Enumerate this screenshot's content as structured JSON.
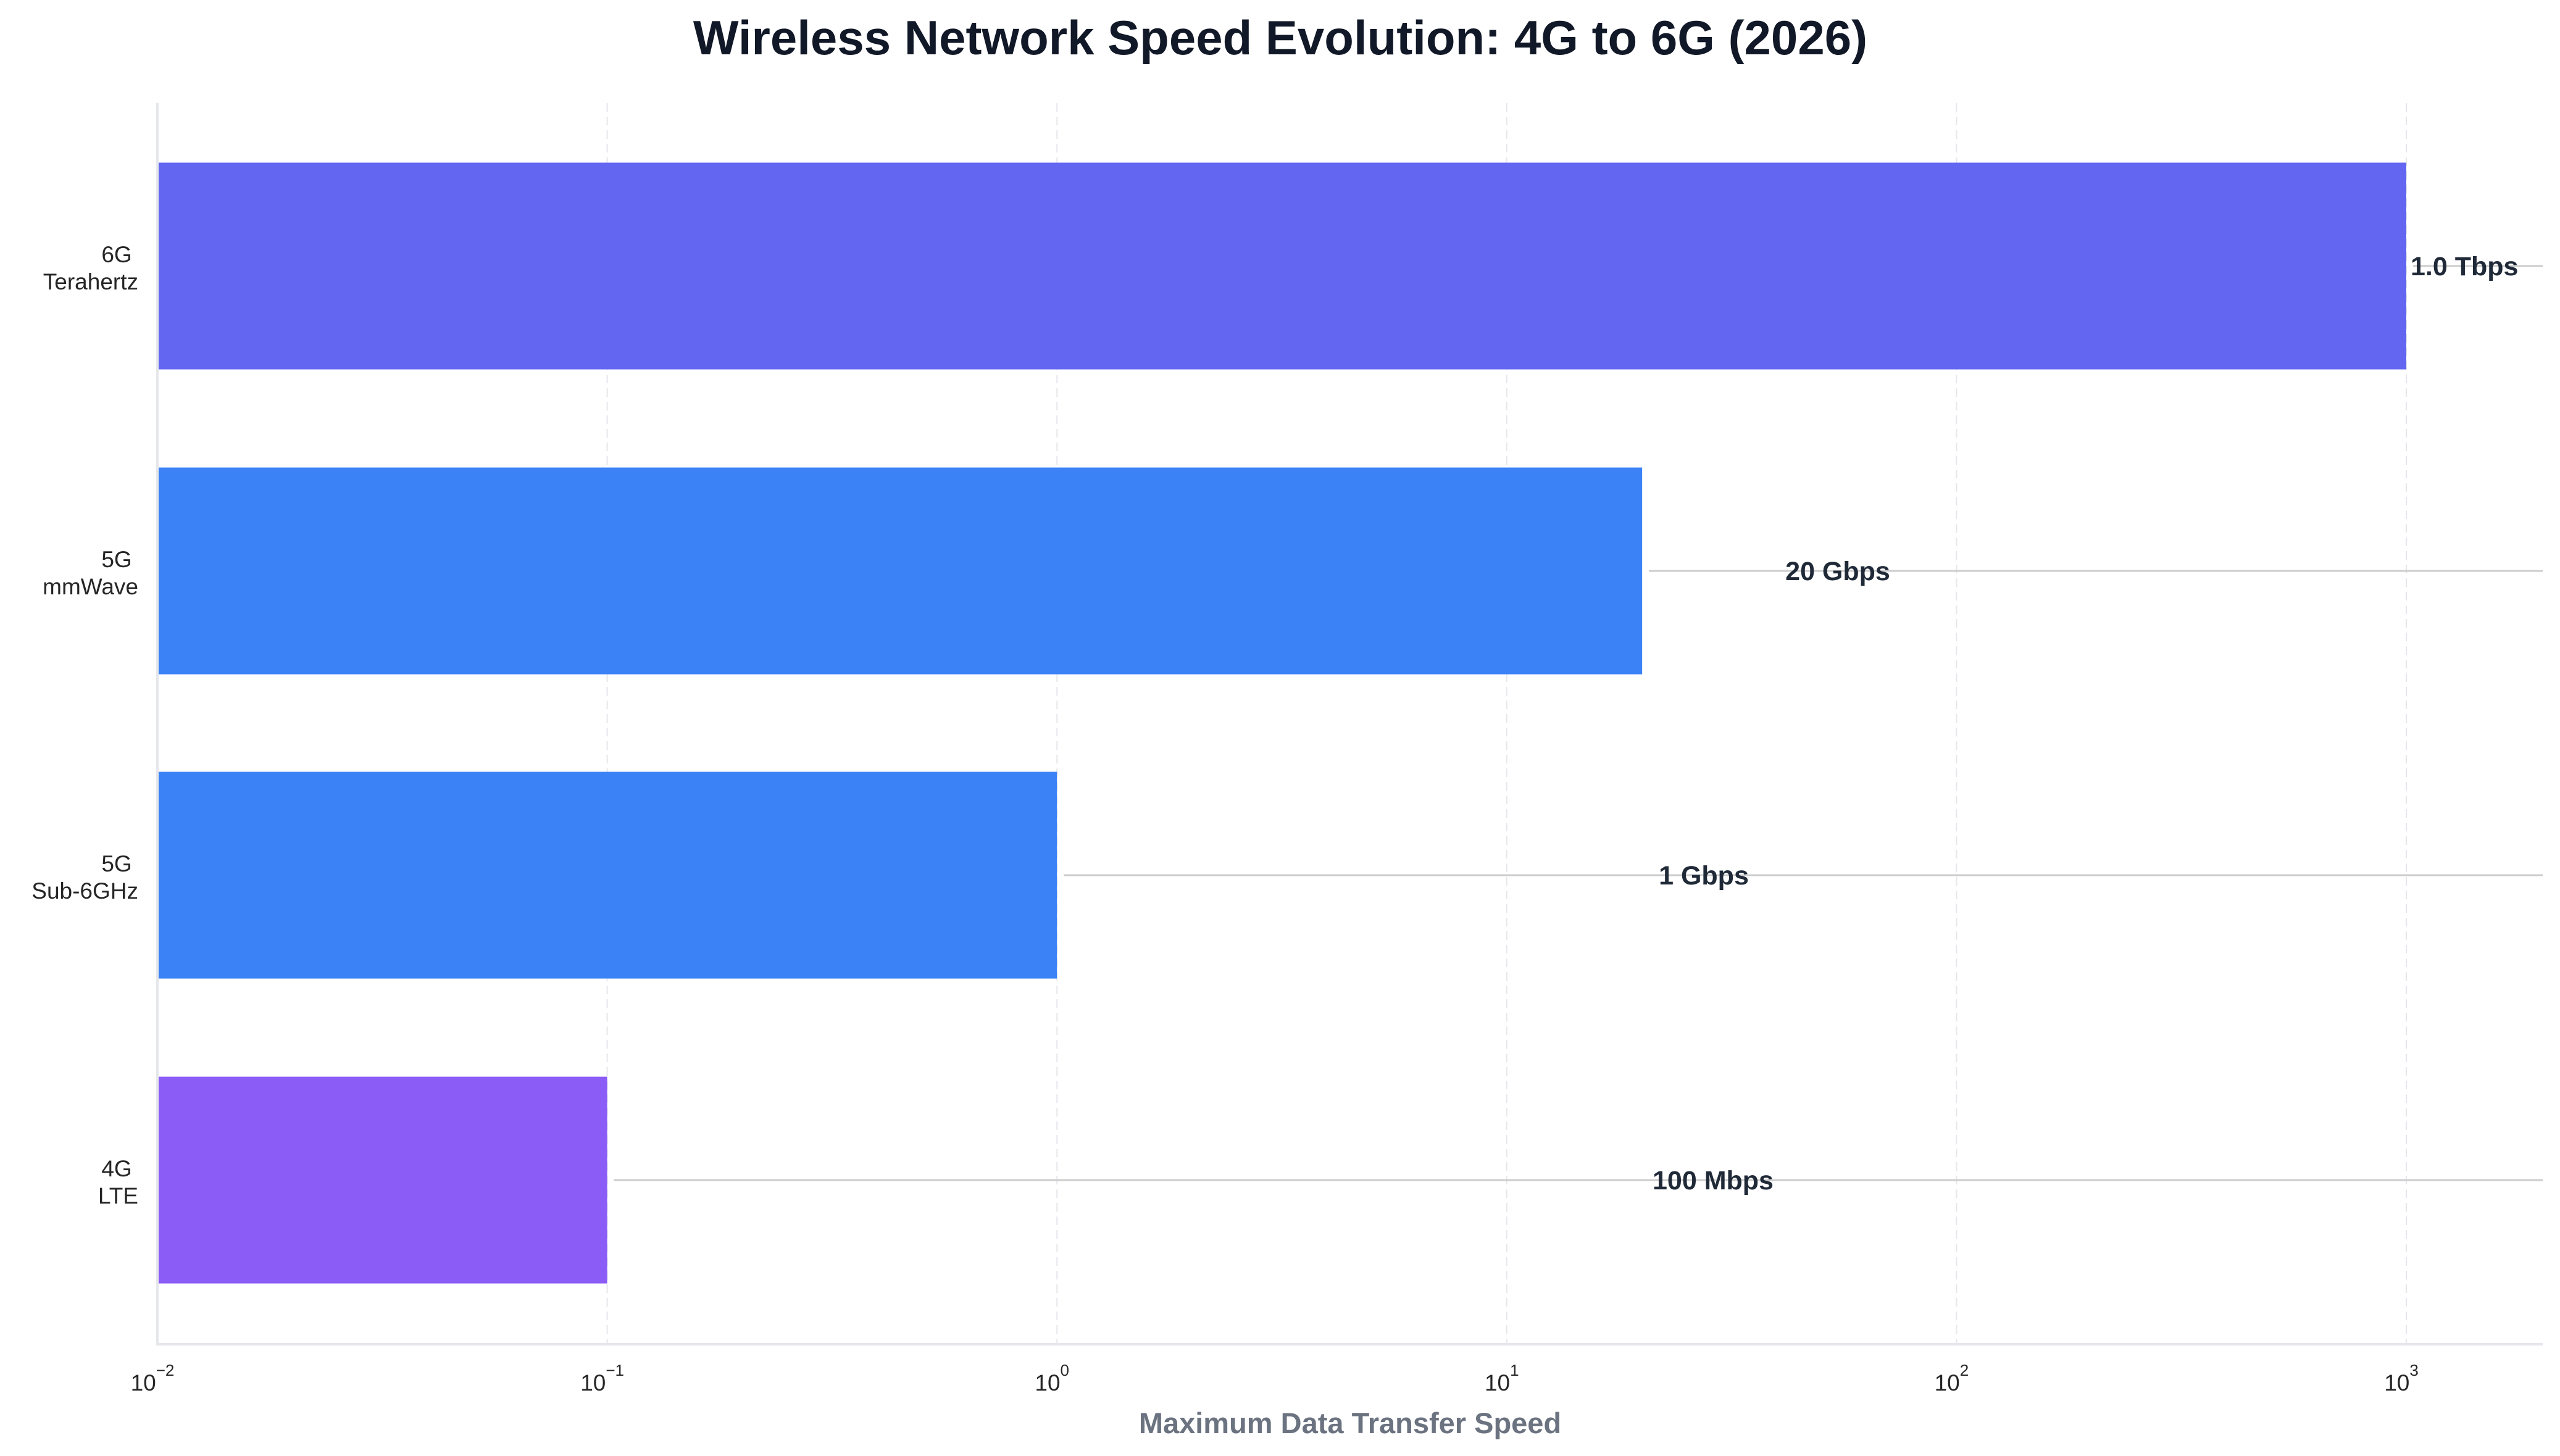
{
  "chart_data": {
    "type": "bar",
    "orientation": "horizontal",
    "title": "Wireless Network Speed Evolution: 4G to 6G (2026)",
    "xlabel": "Maximum Data Transfer Speed",
    "ylabel": "",
    "xscale": "log",
    "xlim": [
      0.01,
      2000
    ],
    "x_unit": "Gbps",
    "grid": {
      "x": true,
      "y": false,
      "style": "dashed"
    },
    "legend": null,
    "xticks": [
      {
        "value": 0.01,
        "base": "10",
        "exp": "−2"
      },
      {
        "value": 0.1,
        "base": "10",
        "exp": "−1"
      },
      {
        "value": 1,
        "base": "10",
        "exp": "0"
      },
      {
        "value": 10,
        "base": "10",
        "exp": "1"
      },
      {
        "value": 100,
        "base": "10",
        "exp": "2"
      },
      {
        "value": 1000,
        "base": "10",
        "exp": "3"
      }
    ],
    "categories": [
      {
        "line1": "6G",
        "line2": "Terahertz"
      },
      {
        "line1": "5G",
        "line2": "mmWave"
      },
      {
        "line1": "5G",
        "line2": "Sub-6GHz"
      },
      {
        "line1": "4G",
        "line2": "LTE"
      }
    ],
    "values": [
      1000,
      20,
      1,
      0.1
    ],
    "value_labels": [
      "1.0 Tbps",
      "20 Gbps",
      "1 Gbps",
      "100 Mbps"
    ],
    "colors": [
      "#6366F1",
      "#3B82F6",
      "#3B82F6",
      "#8B5CF6"
    ]
  },
  "colors": {
    "title": "#111827",
    "axis_label": "#6B7280",
    "value_label": "#1F2937",
    "spine": "#E5E7EB",
    "grid": "#E5E7EB",
    "leader_line": "#CCCCCC"
  }
}
